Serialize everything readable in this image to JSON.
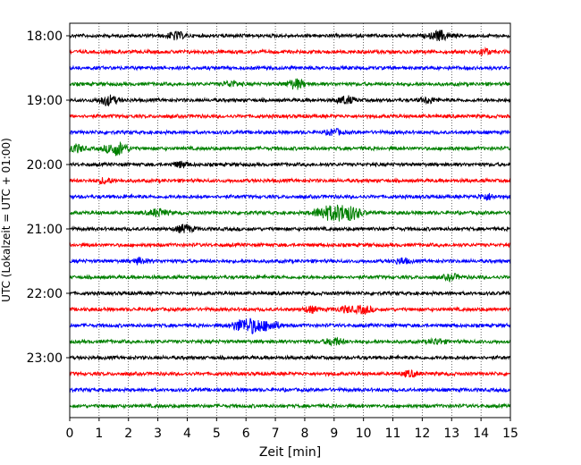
{
  "chart_data": {
    "type": "line",
    "xlabel": "Zeit  [min]",
    "ylabel": "UTC (Lokalzeit = UTC + 01:00)",
    "xlim": [
      0,
      15
    ],
    "x_ticks": [
      0,
      1,
      2,
      3,
      4,
      5,
      6,
      7,
      8,
      9,
      10,
      11,
      12,
      13,
      14,
      15
    ],
    "y_ticks": [
      "18:00",
      "19:00",
      "20:00",
      "21:00",
      "22:00",
      "23:00"
    ],
    "trace_start": "18:00",
    "trace_interval_min": 15,
    "trace_count": 24,
    "colors": [
      "#000000",
      "#ff0000",
      "#0000ff",
      "#008000"
    ],
    "grid": "vertical dotted",
    "events": [
      {
        "trace": 0,
        "t": 3.6,
        "amp": 4
      },
      {
        "trace": 0,
        "t": 12.6,
        "amp": 5
      },
      {
        "trace": 1,
        "t": 14.1,
        "amp": 3
      },
      {
        "trace": 3,
        "t": 7.7,
        "amp": 5
      },
      {
        "trace": 3,
        "t": 5.5,
        "amp": 3
      },
      {
        "trace": 4,
        "t": 1.3,
        "amp": 5
      },
      {
        "trace": 4,
        "t": 9.4,
        "amp": 4
      },
      {
        "trace": 4,
        "t": 12.2,
        "amp": 3
      },
      {
        "trace": 6,
        "t": 9.0,
        "amp": 3
      },
      {
        "trace": 7,
        "t": 0.2,
        "amp": 4
      },
      {
        "trace": 7,
        "t": 1.6,
        "amp": 7
      },
      {
        "trace": 8,
        "t": 3.8,
        "amp": 3
      },
      {
        "trace": 9,
        "t": 1.2,
        "amp": 3
      },
      {
        "trace": 10,
        "t": 14.2,
        "amp": 3
      },
      {
        "trace": 11,
        "t": 3.0,
        "amp": 4
      },
      {
        "trace": 11,
        "t": 8.6,
        "amp": 5
      },
      {
        "trace": 11,
        "t": 9.1,
        "amp": 7
      },
      {
        "trace": 11,
        "t": 9.6,
        "amp": 6
      },
      {
        "trace": 12,
        "t": 3.9,
        "amp": 4
      },
      {
        "trace": 14,
        "t": 2.4,
        "amp": 3
      },
      {
        "trace": 14,
        "t": 11.3,
        "amp": 3
      },
      {
        "trace": 15,
        "t": 13.0,
        "amp": 3
      },
      {
        "trace": 17,
        "t": 8.2,
        "amp": 3
      },
      {
        "trace": 17,
        "t": 9.4,
        "amp": 3
      },
      {
        "trace": 17,
        "t": 10.0,
        "amp": 4
      },
      {
        "trace": 18,
        "t": 5.8,
        "amp": 5
      },
      {
        "trace": 18,
        "t": 6.3,
        "amp": 7
      },
      {
        "trace": 18,
        "t": 6.9,
        "amp": 4
      },
      {
        "trace": 19,
        "t": 9.0,
        "amp": 4
      },
      {
        "trace": 19,
        "t": 12.5,
        "amp": 3
      },
      {
        "trace": 21,
        "t": 11.6,
        "amp": 3
      }
    ]
  }
}
